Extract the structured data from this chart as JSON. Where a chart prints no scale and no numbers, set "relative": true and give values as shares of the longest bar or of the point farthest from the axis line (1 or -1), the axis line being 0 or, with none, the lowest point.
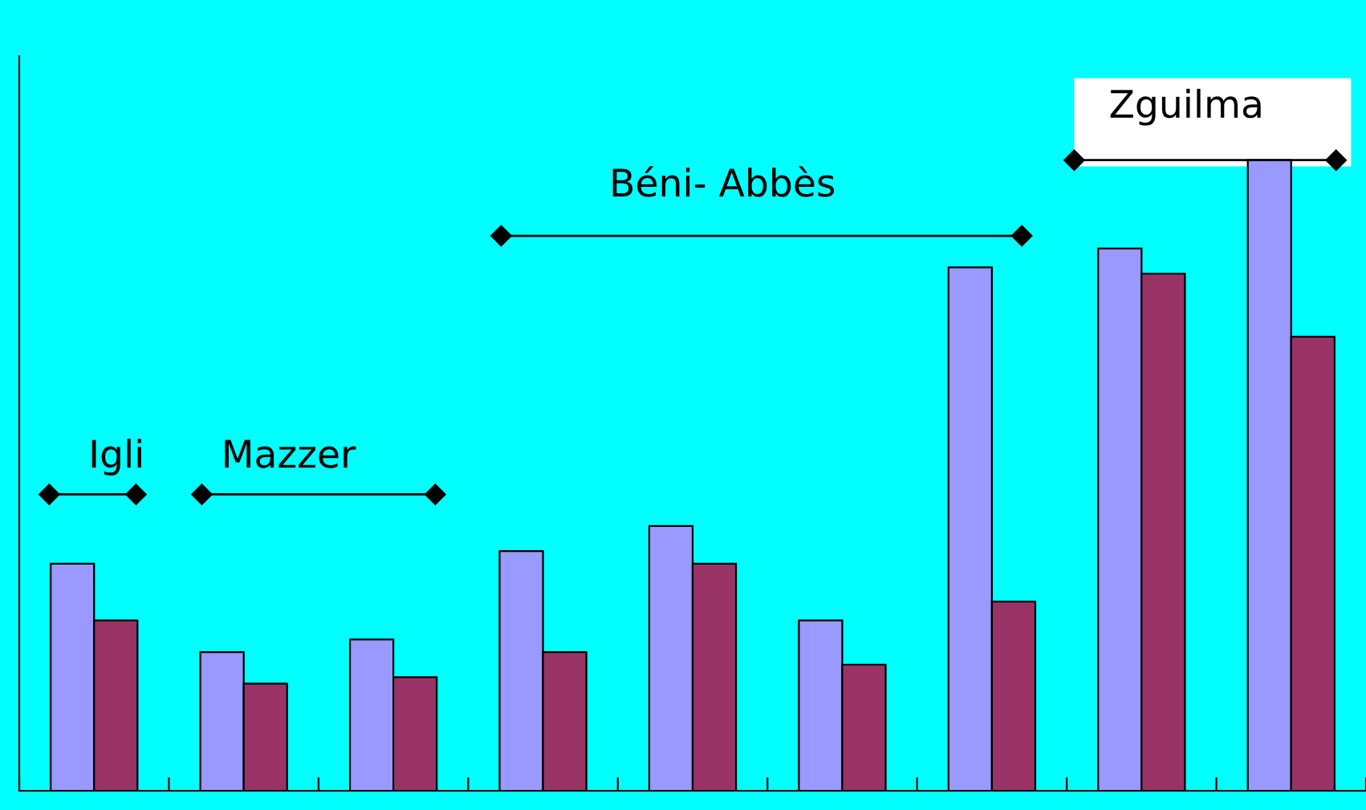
{
  "chart_data": {
    "type": "bar",
    "relative": true,
    "grid": false,
    "legend": false,
    "categories": [
      null,
      null,
      null,
      null,
      null,
      null,
      null,
      null,
      null
    ],
    "series": [
      {
        "color": "#9999ff",
        "values": [
          0.36,
          0.22,
          0.24,
          0.38,
          0.42,
          0.27,
          0.83,
          0.86,
          1
        ]
      },
      {
        "color": "#993366",
        "values": [
          0.27,
          0.17,
          0.18,
          0.22,
          0.36,
          0.2,
          0.3,
          0.82,
          0.72
        ]
      }
    ],
    "annotations": [
      "Igli",
      "Mazzer",
      "Béni- Abbès",
      "Zguilma"
    ]
  }
}
